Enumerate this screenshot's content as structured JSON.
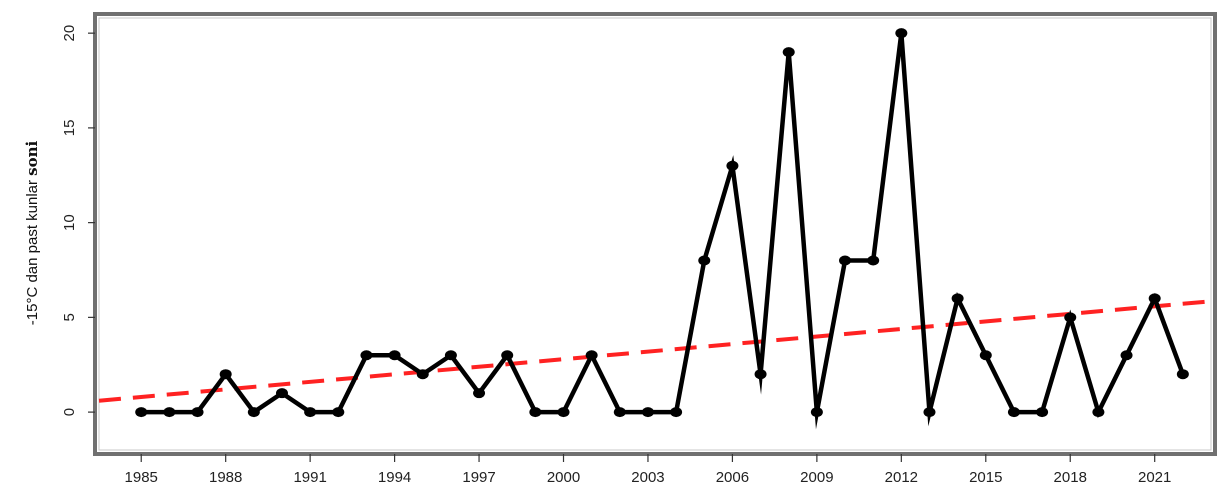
{
  "chart_data": {
    "type": "line",
    "title": "",
    "xlabel": "",
    "ylabel": {
      "prefix": "-15°C dan past kunlar ",
      "suffix": "soni"
    },
    "xlim": [
      1983.5,
      2023
    ],
    "ylim": [
      -2,
      20.8
    ],
    "x_ticks": [
      1985,
      1988,
      1991,
      1994,
      1997,
      2000,
      2003,
      2006,
      2009,
      2012,
      2015,
      2018,
      2021
    ],
    "y_ticks": [
      0,
      5,
      10,
      15,
      20
    ],
    "grid": false,
    "legend": "none",
    "series": [
      {
        "color": "#000000",
        "marker": "circle",
        "x": [
          1985,
          1986,
          1987,
          1988,
          1989,
          1990,
          1991,
          1992,
          1993,
          1994,
          1995,
          1996,
          1997,
          1998,
          1999,
          2000,
          2001,
          2002,
          2003,
          2004,
          2005,
          2006,
          2007,
          2008,
          2009,
          2010,
          2011,
          2012,
          2013,
          2014,
          2015,
          2016,
          2017,
          2018,
          2019,
          2020,
          2021,
          2022
        ],
        "values": [
          0,
          0,
          0,
          2,
          0,
          1,
          0,
          0,
          3,
          3,
          2,
          3,
          1,
          3,
          0,
          0,
          3,
          0,
          0,
          0,
          8,
          13,
          2,
          19,
          0,
          8,
          8,
          20,
          0,
          6,
          3,
          0,
          0,
          5,
          0,
          3,
          6,
          2
        ]
      }
    ],
    "trend_line": {
      "color": "#ff2222",
      "style": "dashed",
      "x": [
        1983.5,
        2023
      ],
      "values": [
        0.6,
        5.85
      ]
    }
  }
}
